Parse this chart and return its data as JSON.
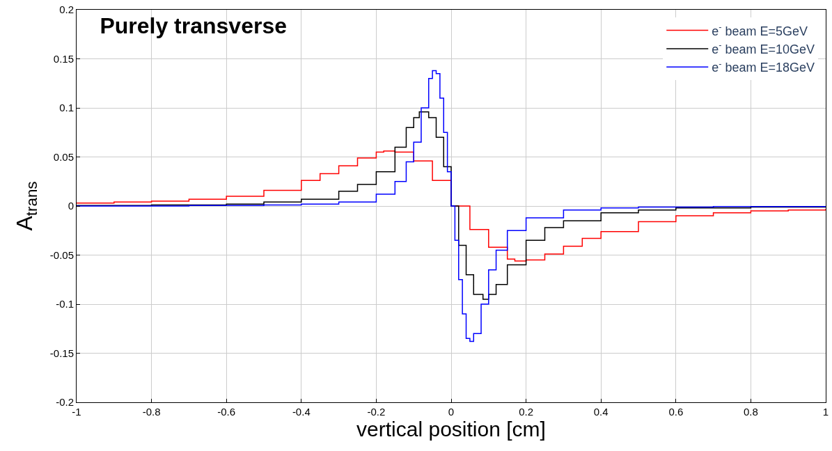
{
  "chart_data": {
    "type": "step",
    "title": "Purely transverse",
    "xlabel": "vertical position [cm]",
    "ylabel": "A$_{trans}$",
    "xlim": [
      -1,
      1
    ],
    "ylim": [
      -0.2,
      0.2
    ],
    "xticks": [
      -1,
      -0.8,
      -0.6,
      -0.4,
      -0.2,
      0,
      0.2,
      0.4,
      0.6,
      0.8,
      1
    ],
    "yticks": [
      -0.2,
      -0.15,
      -0.1,
      -0.05,
      0,
      0.05,
      0.1,
      0.15,
      0.2
    ],
    "grid": true,
    "legend": "top right",
    "line_style": "solid",
    "marker": "none",
    "series": [
      {
        "name": "e$^{-}$ beam E=5GeV",
        "color": "#ff0000",
        "x": [
          -1,
          -0.9,
          -0.8,
          -0.7,
          -0.6,
          -0.5,
          -0.4,
          -0.35,
          -0.3,
          -0.25,
          -0.2,
          -0.18,
          -0.15,
          -0.1,
          -0.05,
          0,
          0.05,
          0.1,
          0.15,
          0.17,
          0.2,
          0.25,
          0.3,
          0.35,
          0.4,
          0.5,
          0.6,
          0.7,
          0.8,
          0.9,
          1
        ],
        "values": [
          0.003,
          0.004,
          0.005,
          0.007,
          0.01,
          0.016,
          0.026,
          0.033,
          0.041,
          0.049,
          0.055,
          0.056,
          0.055,
          0.046,
          0.026,
          0,
          -0.024,
          -0.042,
          -0.054,
          -0.056,
          -0.055,
          -0.049,
          -0.041,
          -0.033,
          -0.026,
          -0.016,
          -0.01,
          -0.007,
          -0.005,
          -0.004,
          -0.003
        ]
      },
      {
        "name": "e$^{-}$ beam E=10GeV",
        "color": "#000000",
        "x": [
          -1,
          -0.8,
          -0.6,
          -0.5,
          -0.4,
          -0.3,
          -0.25,
          -0.2,
          -0.15,
          -0.12,
          -0.1,
          -0.085,
          -0.06,
          -0.04,
          -0.02,
          0,
          0.02,
          0.04,
          0.06,
          0.085,
          0.1,
          0.12,
          0.15,
          0.2,
          0.25,
          0.3,
          0.4,
          0.5,
          0.6,
          0.8,
          1
        ],
        "values": [
          0.0005,
          0.001,
          0.002,
          0.004,
          0.007,
          0.015,
          0.022,
          0.035,
          0.06,
          0.08,
          0.09,
          0.096,
          0.09,
          0.07,
          0.04,
          0,
          -0.04,
          -0.07,
          -0.09,
          -0.095,
          -0.09,
          -0.08,
          -0.06,
          -0.035,
          -0.022,
          -0.015,
          -0.007,
          -0.004,
          -0.002,
          -0.001,
          -0.0005
        ]
      },
      {
        "name": "e$^{-}$ beam E=18GeV",
        "color": "#0000ff",
        "x": [
          -1,
          -0.7,
          -0.5,
          -0.4,
          -0.3,
          -0.2,
          -0.15,
          -0.12,
          -0.1,
          -0.08,
          -0.06,
          -0.05,
          -0.04,
          -0.03,
          -0.02,
          -0.01,
          0,
          0.01,
          0.02,
          0.03,
          0.04,
          0.05,
          0.06,
          0.08,
          0.1,
          0.12,
          0.15,
          0.2,
          0.3,
          0.4,
          0.5,
          0.7,
          1
        ],
        "values": [
          0,
          0.0005,
          0.001,
          0.002,
          0.004,
          0.012,
          0.025,
          0.045,
          0.065,
          0.1,
          0.13,
          0.138,
          0.135,
          0.11,
          0.075,
          0.035,
          0,
          -0.035,
          -0.075,
          -0.11,
          -0.135,
          -0.138,
          -0.13,
          -0.1,
          -0.065,
          -0.045,
          -0.025,
          -0.012,
          -0.004,
          -0.002,
          -0.001,
          -0.0005,
          0
        ]
      }
    ]
  }
}
